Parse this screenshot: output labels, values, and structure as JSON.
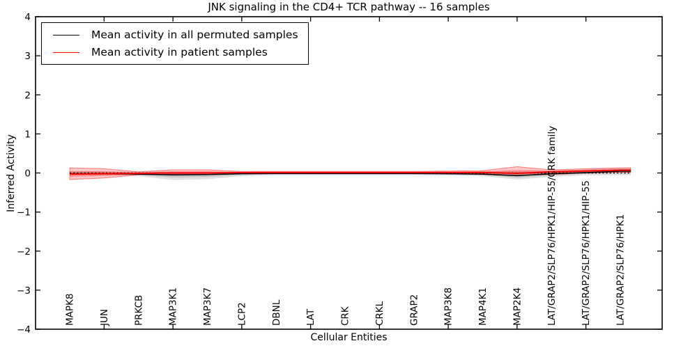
{
  "figure": {
    "background": "#ffffff",
    "frame_color": "#000000"
  },
  "title": "JNK signaling in the CD4+ TCR pathway -- 16 samples",
  "legend": {
    "items": [
      {
        "label": "Mean activity in all permuted samples",
        "color": "#000000"
      },
      {
        "label": "Mean activity in patient samples",
        "color": "#ff0000"
      }
    ],
    "position": "upper-left"
  },
  "chart_data": {
    "type": "line",
    "title": "JNK signaling in the CD4+ TCR pathway -- 16 samples",
    "xlabel": "Cellular Entities",
    "ylabel": "Inferred Activity",
    "ylim": [
      -4,
      4
    ],
    "ytick_values": [
      4,
      3,
      2,
      1,
      0,
      -1,
      -2,
      -3,
      -4
    ],
    "ytick_labels": [
      "4",
      "3",
      "2",
      "1",
      "0",
      "−1",
      "−2",
      "−3",
      "−4"
    ],
    "grid": false,
    "baseline": {
      "value": 0,
      "style": "dotted",
      "color": "#000000"
    },
    "categories": [
      "MAPK8",
      "JUN",
      "PRKCB",
      "MAP3K1",
      "MAP3K7",
      "LCP2",
      "DBNL",
      "LAT",
      "CRK",
      "CRKL",
      "GRAP2",
      "MAP3K8",
      "MAP4K1",
      "MAP2K4",
      "LAT/GRAP2/SLP76/HPK1/HIP-55/CRK family",
      "LAT/GRAP2/SLP76/HPK1/HIP-55",
      "LAT/GRAP2/SLP76/HPK1"
    ],
    "series": [
      {
        "name": "Mean activity in all permuted samples",
        "color": "#000000",
        "band_fill": "#000000",
        "band_opacity": 0.12,
        "values": [
          -0.02,
          -0.02,
          -0.03,
          -0.05,
          -0.04,
          -0.02,
          -0.015,
          -0.015,
          -0.015,
          -0.015,
          -0.015,
          -0.02,
          -0.03,
          -0.07,
          -0.02,
          0.01,
          0.045
        ],
        "band_low": [
          -0.06,
          -0.06,
          -0.08,
          -0.18,
          -0.16,
          -0.08,
          -0.05,
          -0.05,
          -0.05,
          -0.05,
          -0.05,
          -0.06,
          -0.08,
          -0.17,
          -0.1,
          -0.06,
          -0.06
        ],
        "band_high": [
          0.04,
          0.04,
          0.04,
          0.04,
          0.04,
          0.03,
          0.03,
          0.03,
          0.03,
          0.03,
          0.03,
          0.04,
          0.04,
          0.05,
          0.06,
          0.1,
          0.14
        ]
      },
      {
        "name": "Mean activity in patient samples",
        "color": "#ff0000",
        "band_fill": "#ff0000",
        "band_opacity": 0.22,
        "values": [
          -0.03,
          -0.02,
          -0.01,
          0.0,
          0.0,
          0.01,
          0.012,
          0.012,
          0.012,
          0.012,
          0.012,
          0.012,
          0.015,
          -0.01,
          0.03,
          0.05,
          0.07
        ],
        "band_low": [
          -0.17,
          -0.13,
          -0.05,
          -0.03,
          -0.03,
          -0.02,
          -0.02,
          -0.02,
          -0.02,
          -0.02,
          -0.02,
          -0.02,
          -0.04,
          -0.06,
          -0.04,
          0.0,
          0.02
        ],
        "band_high": [
          0.13,
          0.11,
          0.03,
          0.08,
          0.08,
          0.04,
          0.04,
          0.04,
          0.04,
          0.04,
          0.04,
          0.05,
          0.06,
          0.16,
          0.08,
          0.11,
          0.13
        ]
      }
    ]
  }
}
